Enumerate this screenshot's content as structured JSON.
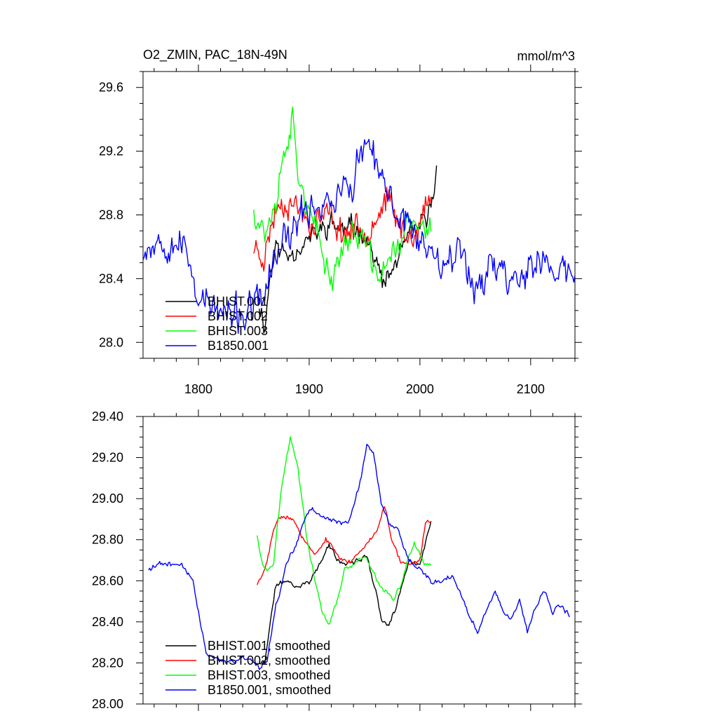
{
  "chart_data": [
    {
      "type": "line",
      "title_left": "O2_ZMIN, PAC_18N-49N",
      "title_right": "mmol/m^3",
      "xlim": [
        1750,
        2140
      ],
      "ylim": [
        27.9,
        29.7
      ],
      "xticks": [
        1800,
        1900,
        2000,
        2100
      ],
      "xtick_labels": [
        "1800",
        "1900",
        "2000",
        "2100"
      ],
      "yticks": [
        28.0,
        28.4,
        28.8,
        29.2,
        29.6
      ],
      "ytick_labels": [
        "28.0",
        "28.4",
        "28.8",
        "29.2",
        "29.6"
      ],
      "legend_position": "bottom-left",
      "series": [
        {
          "name": "BHIST.001",
          "color": "#000000",
          "start": 1855,
          "end": 2015,
          "anchors": [
            [
              1855,
              28.25
            ],
            [
              1860,
              28.1
            ],
            [
              1865,
              28.45
            ],
            [
              1870,
              28.6
            ],
            [
              1880,
              28.55
            ],
            [
              1890,
              28.6
            ],
            [
              1900,
              28.65
            ],
            [
              1910,
              28.7
            ],
            [
              1920,
              28.75
            ],
            [
              1930,
              28.7
            ],
            [
              1940,
              28.72
            ],
            [
              1950,
              28.7
            ],
            [
              1960,
              28.5
            ],
            [
              1968,
              28.35
            ],
            [
              1975,
              28.45
            ],
            [
              1985,
              28.6
            ],
            [
              1995,
              28.7
            ],
            [
              2005,
              28.75
            ],
            [
              2010,
              28.85
            ],
            [
              2015,
              29.08
            ]
          ],
          "amp": 0.1,
          "seed": 11
        },
        {
          "name": "BHIST.002",
          "color": "#ff0000",
          "start": 1850,
          "end": 2010,
          "anchors": [
            [
              1850,
              28.6
            ],
            [
              1860,
              28.55
            ],
            [
              1870,
              28.85
            ],
            [
              1880,
              28.9
            ],
            [
              1890,
              28.85
            ],
            [
              1900,
              28.75
            ],
            [
              1910,
              28.78
            ],
            [
              1920,
              28.8
            ],
            [
              1930,
              28.68
            ],
            [
              1940,
              28.72
            ],
            [
              1950,
              28.7
            ],
            [
              1960,
              28.8
            ],
            [
              1970,
              28.9
            ],
            [
              1980,
              28.75
            ],
            [
              1990,
              28.65
            ],
            [
              2000,
              28.75
            ],
            [
              2010,
              28.9
            ]
          ],
          "amp": 0.13,
          "seed": 23
        },
        {
          "name": "BHIST.003",
          "color": "#00ff00",
          "start": 1850,
          "end": 2010,
          "anchors": [
            [
              1850,
              28.85
            ],
            [
              1860,
              28.7
            ],
            [
              1870,
              28.9
            ],
            [
              1880,
              29.3
            ],
            [
              1885,
              29.4
            ],
            [
              1890,
              29.1
            ],
            [
              1900,
              28.8
            ],
            [
              1910,
              28.6
            ],
            [
              1920,
              28.4
            ],
            [
              1930,
              28.6
            ],
            [
              1940,
              28.68
            ],
            [
              1950,
              28.65
            ],
            [
              1960,
              28.4
            ],
            [
              1970,
              28.5
            ],
            [
              1980,
              28.6
            ],
            [
              1990,
              28.75
            ],
            [
              2000,
              28.7
            ],
            [
              2010,
              28.7
            ]
          ],
          "amp": 0.13,
          "seed": 37
        },
        {
          "name": "B1850.001",
          "color": "#0000ff",
          "start": 1750,
          "end": 2140,
          "anchors": [
            [
              1750,
              28.6
            ],
            [
              1765,
              28.65
            ],
            [
              1780,
              28.65
            ],
            [
              1790,
              28.55
            ],
            [
              1800,
              28.3
            ],
            [
              1815,
              28.2
            ],
            [
              1830,
              28.15
            ],
            [
              1850,
              28.2
            ],
            [
              1860,
              28.3
            ],
            [
              1870,
              28.55
            ],
            [
              1885,
              28.7
            ],
            [
              1900,
              28.85
            ],
            [
              1920,
              28.9
            ],
            [
              1940,
              29.0
            ],
            [
              1950,
              29.25
            ],
            [
              1960,
              29.1
            ],
            [
              1975,
              28.85
            ],
            [
              1990,
              28.75
            ],
            [
              2005,
              28.6
            ],
            [
              2020,
              28.55
            ],
            [
              2040,
              28.55
            ],
            [
              2050,
              28.35
            ],
            [
              2065,
              28.5
            ],
            [
              2080,
              28.4
            ],
            [
              2095,
              28.45
            ],
            [
              2110,
              28.5
            ],
            [
              2125,
              28.45
            ],
            [
              2140,
              28.42
            ]
          ],
          "amp": 0.16,
          "seed": 53
        }
      ]
    },
    {
      "type": "line",
      "xlim": [
        1750,
        2140
      ],
      "ylim": [
        28.0,
        29.4
      ],
      "xticks": [
        1800,
        1900,
        2000,
        2100
      ],
      "xtick_labels": [],
      "yticks": [
        28.0,
        28.2,
        28.4,
        28.6,
        28.8,
        29.0,
        29.2,
        29.4
      ],
      "ytick_labels": [
        "28.00",
        "28.20",
        "28.40",
        "28.60",
        "28.80",
        "29.00",
        "29.20",
        "29.40"
      ],
      "legend_position": "bottom-left",
      "series": [
        {
          "name": "BHIST.001, smoothed",
          "color": "#000000",
          "start": 1855,
          "end": 2010,
          "anchors": [
            [
              1855,
              28.2
            ],
            [
              1860,
              28.2
            ],
            [
              1865,
              28.4
            ],
            [
              1870,
              28.58
            ],
            [
              1878,
              28.6
            ],
            [
              1890,
              28.57
            ],
            [
              1900,
              28.6
            ],
            [
              1910,
              28.68
            ],
            [
              1918,
              28.78
            ],
            [
              1925,
              28.7
            ],
            [
              1935,
              28.68
            ],
            [
              1945,
              28.7
            ],
            [
              1952,
              28.72
            ],
            [
              1960,
              28.55
            ],
            [
              1966,
              28.4
            ],
            [
              1972,
              28.38
            ],
            [
              1980,
              28.5
            ],
            [
              1990,
              28.7
            ],
            [
              2000,
              28.68
            ],
            [
              2005,
              28.78
            ],
            [
              2010,
              28.88
            ]
          ],
          "amp": 0.018,
          "seed": 71
        },
        {
          "name": "BHIST.002, smoothed",
          "color": "#ff0000",
          "start": 1853,
          "end": 2010,
          "anchors": [
            [
              1853,
              28.58
            ],
            [
              1860,
              28.65
            ],
            [
              1868,
              28.85
            ],
            [
              1875,
              28.93
            ],
            [
              1885,
              28.9
            ],
            [
              1895,
              28.8
            ],
            [
              1905,
              28.72
            ],
            [
              1915,
              28.8
            ],
            [
              1925,
              28.73
            ],
            [
              1935,
              28.68
            ],
            [
              1945,
              28.74
            ],
            [
              1955,
              28.8
            ],
            [
              1962,
              28.86
            ],
            [
              1968,
              28.97
            ],
            [
              1975,
              28.8
            ],
            [
              1982,
              28.7
            ],
            [
              1990,
              28.68
            ],
            [
              2000,
              28.7
            ],
            [
              2005,
              28.88
            ],
            [
              2010,
              28.9
            ]
          ],
          "amp": 0.018,
          "seed": 83
        },
        {
          "name": "BHIST.003, smoothed",
          "color": "#00ff00",
          "start": 1853,
          "end": 2010,
          "anchors": [
            [
              1853,
              28.83
            ],
            [
              1858,
              28.68
            ],
            [
              1862,
              28.65
            ],
            [
              1868,
              28.7
            ],
            [
              1875,
              29.05
            ],
            [
              1883,
              29.3
            ],
            [
              1890,
              29.15
            ],
            [
              1898,
              28.8
            ],
            [
              1905,
              28.6
            ],
            [
              1912,
              28.45
            ],
            [
              1918,
              28.38
            ],
            [
              1925,
              28.5
            ],
            [
              1932,
              28.65
            ],
            [
              1942,
              28.68
            ],
            [
              1950,
              28.72
            ],
            [
              1957,
              28.65
            ],
            [
              1963,
              28.58
            ],
            [
              1970,
              28.55
            ],
            [
              1976,
              28.5
            ],
            [
              1983,
              28.58
            ],
            [
              1990,
              28.72
            ],
            [
              1995,
              28.78
            ],
            [
              2000,
              28.72
            ],
            [
              2005,
              28.68
            ],
            [
              2010,
              28.67
            ]
          ],
          "amp": 0.018,
          "seed": 97
        },
        {
          "name": "B1850.001, smoothed",
          "color": "#0000ff",
          "start": 1755,
          "end": 2135,
          "anchors": [
            [
              1755,
              28.66
            ],
            [
              1765,
              28.68
            ],
            [
              1775,
              28.68
            ],
            [
              1785,
              28.68
            ],
            [
              1795,
              28.6
            ],
            [
              1800,
              28.45
            ],
            [
              1807,
              28.25
            ],
            [
              1815,
              28.22
            ],
            [
              1825,
              28.2
            ],
            [
              1838,
              28.22
            ],
            [
              1848,
              28.22
            ],
            [
              1856,
              28.17
            ],
            [
              1862,
              28.22
            ],
            [
              1870,
              28.48
            ],
            [
              1880,
              28.68
            ],
            [
              1890,
              28.8
            ],
            [
              1900,
              28.95
            ],
            [
              1910,
              28.93
            ],
            [
              1925,
              28.88
            ],
            [
              1935,
              28.88
            ],
            [
              1945,
              29.05
            ],
            [
              1952,
              29.25
            ],
            [
              1958,
              29.22
            ],
            [
              1965,
              28.98
            ],
            [
              1972,
              28.88
            ],
            [
              1980,
              28.85
            ],
            [
              1990,
              28.7
            ],
            [
              2000,
              28.65
            ],
            [
              2010,
              28.6
            ],
            [
              2020,
              28.6
            ],
            [
              2030,
              28.62
            ],
            [
              2038,
              28.52
            ],
            [
              2045,
              28.42
            ],
            [
              2052,
              28.35
            ],
            [
              2060,
              28.45
            ],
            [
              2068,
              28.55
            ],
            [
              2076,
              28.45
            ],
            [
              2082,
              28.4
            ],
            [
              2090,
              28.5
            ],
            [
              2097,
              28.35
            ],
            [
              2103,
              28.45
            ],
            [
              2112,
              28.55
            ],
            [
              2120,
              28.45
            ],
            [
              2128,
              28.48
            ],
            [
              2135,
              28.43
            ]
          ],
          "amp": 0.018,
          "seed": 109
        }
      ]
    }
  ]
}
